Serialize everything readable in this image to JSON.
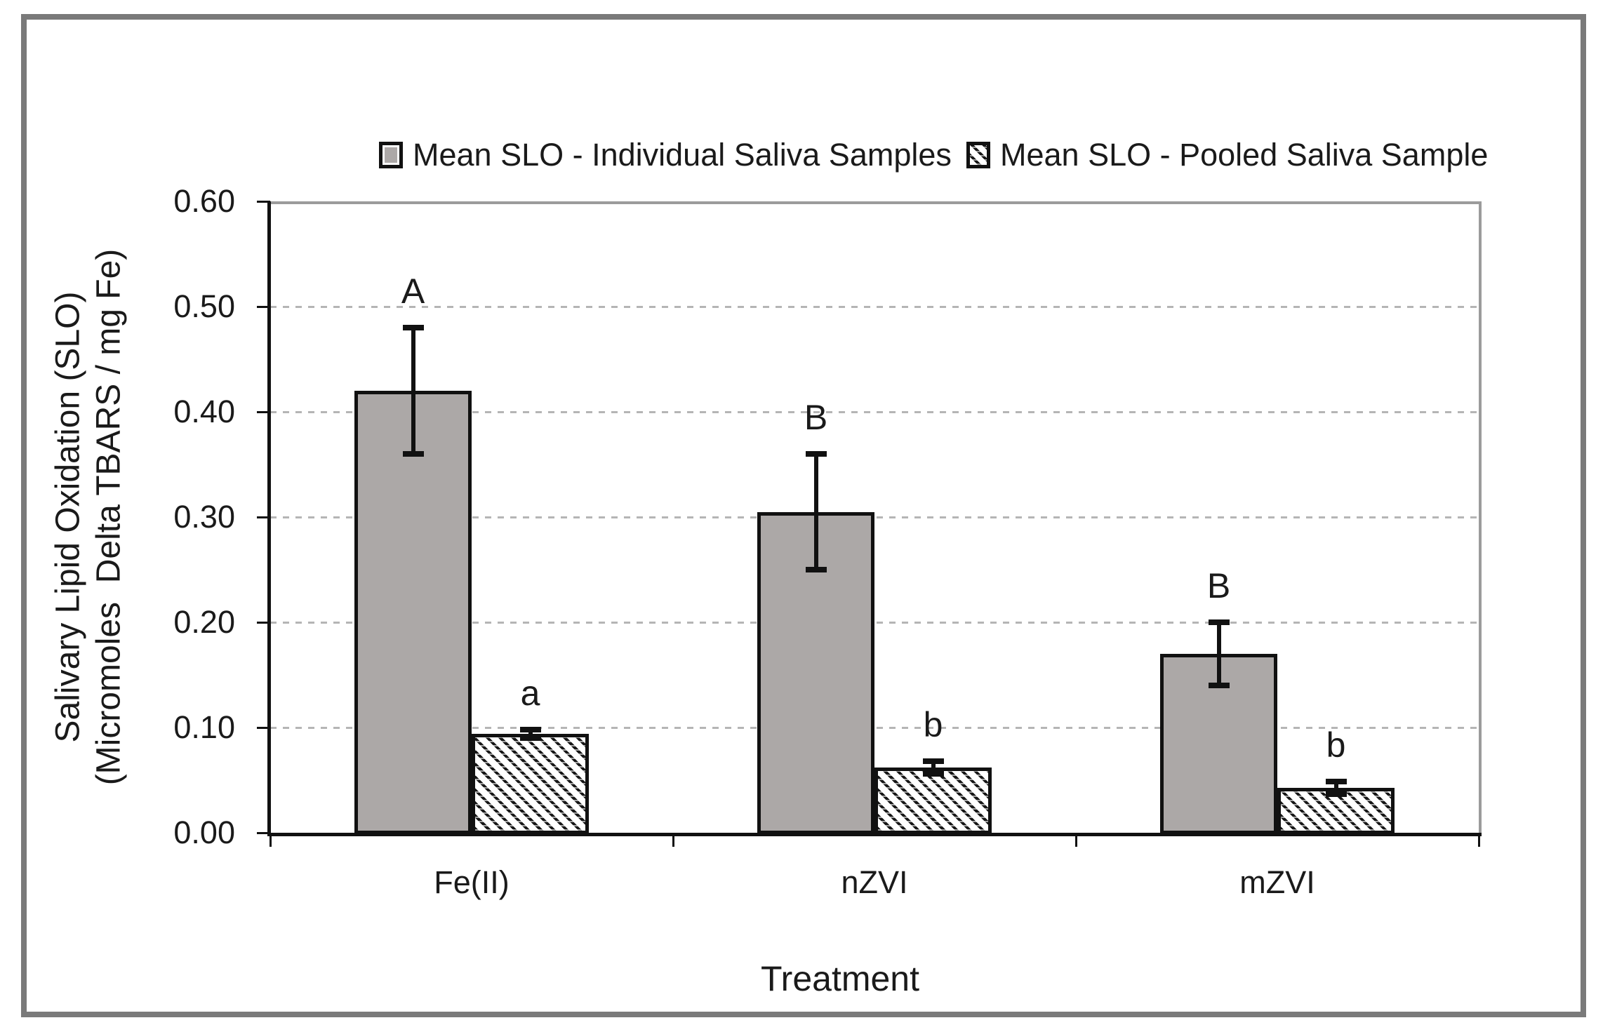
{
  "chart_data": {
    "type": "bar",
    "title": "",
    "categories": [
      "Fe(II)",
      "nZVI",
      "mZVI"
    ],
    "series": [
      {
        "name": "Mean SLO - Individual Saliva Samples",
        "pattern": "solid-gray",
        "values": [
          0.42,
          0.305,
          0.17
        ],
        "error_low": [
          0.36,
          0.25,
          0.14
        ],
        "error_high": [
          0.48,
          0.36,
          0.2
        ],
        "sig_letters": [
          "A",
          "B",
          "B"
        ]
      },
      {
        "name": "Mean SLO - Pooled Saliva Sample",
        "pattern": "hatched",
        "values": [
          0.094,
          0.062,
          0.043
        ],
        "error_low": [
          0.09,
          0.056,
          0.037
        ],
        "error_high": [
          0.098,
          0.068,
          0.049
        ],
        "sig_letters": [
          "a",
          "b",
          "b"
        ]
      }
    ],
    "xlabel": "Treatment",
    "ylabel_line1": "Salivary Lipid Oxidation (SLO)",
    "ylabel_line2": "(Micromoles  Delta TBARS / mg Fe)",
    "ylim": [
      0,
      0.6
    ],
    "ytick_step": 0.1,
    "ytick_labels": [
      "0.00",
      "0.10",
      "0.20",
      "0.30",
      "0.40",
      "0.50",
      "0.60"
    ],
    "grid": "horizontal-dashed",
    "legend_position": "top-center"
  },
  "colors": {
    "bar_fill_gray": "#aca8a7",
    "bar_border": "#111111",
    "gridline": "#b5b5b5",
    "axis": "#111111",
    "plot_border": "#9b9b9b",
    "frame_border": "#7a7a7a",
    "text": "#1a1a1a",
    "background": "#ffffff"
  }
}
